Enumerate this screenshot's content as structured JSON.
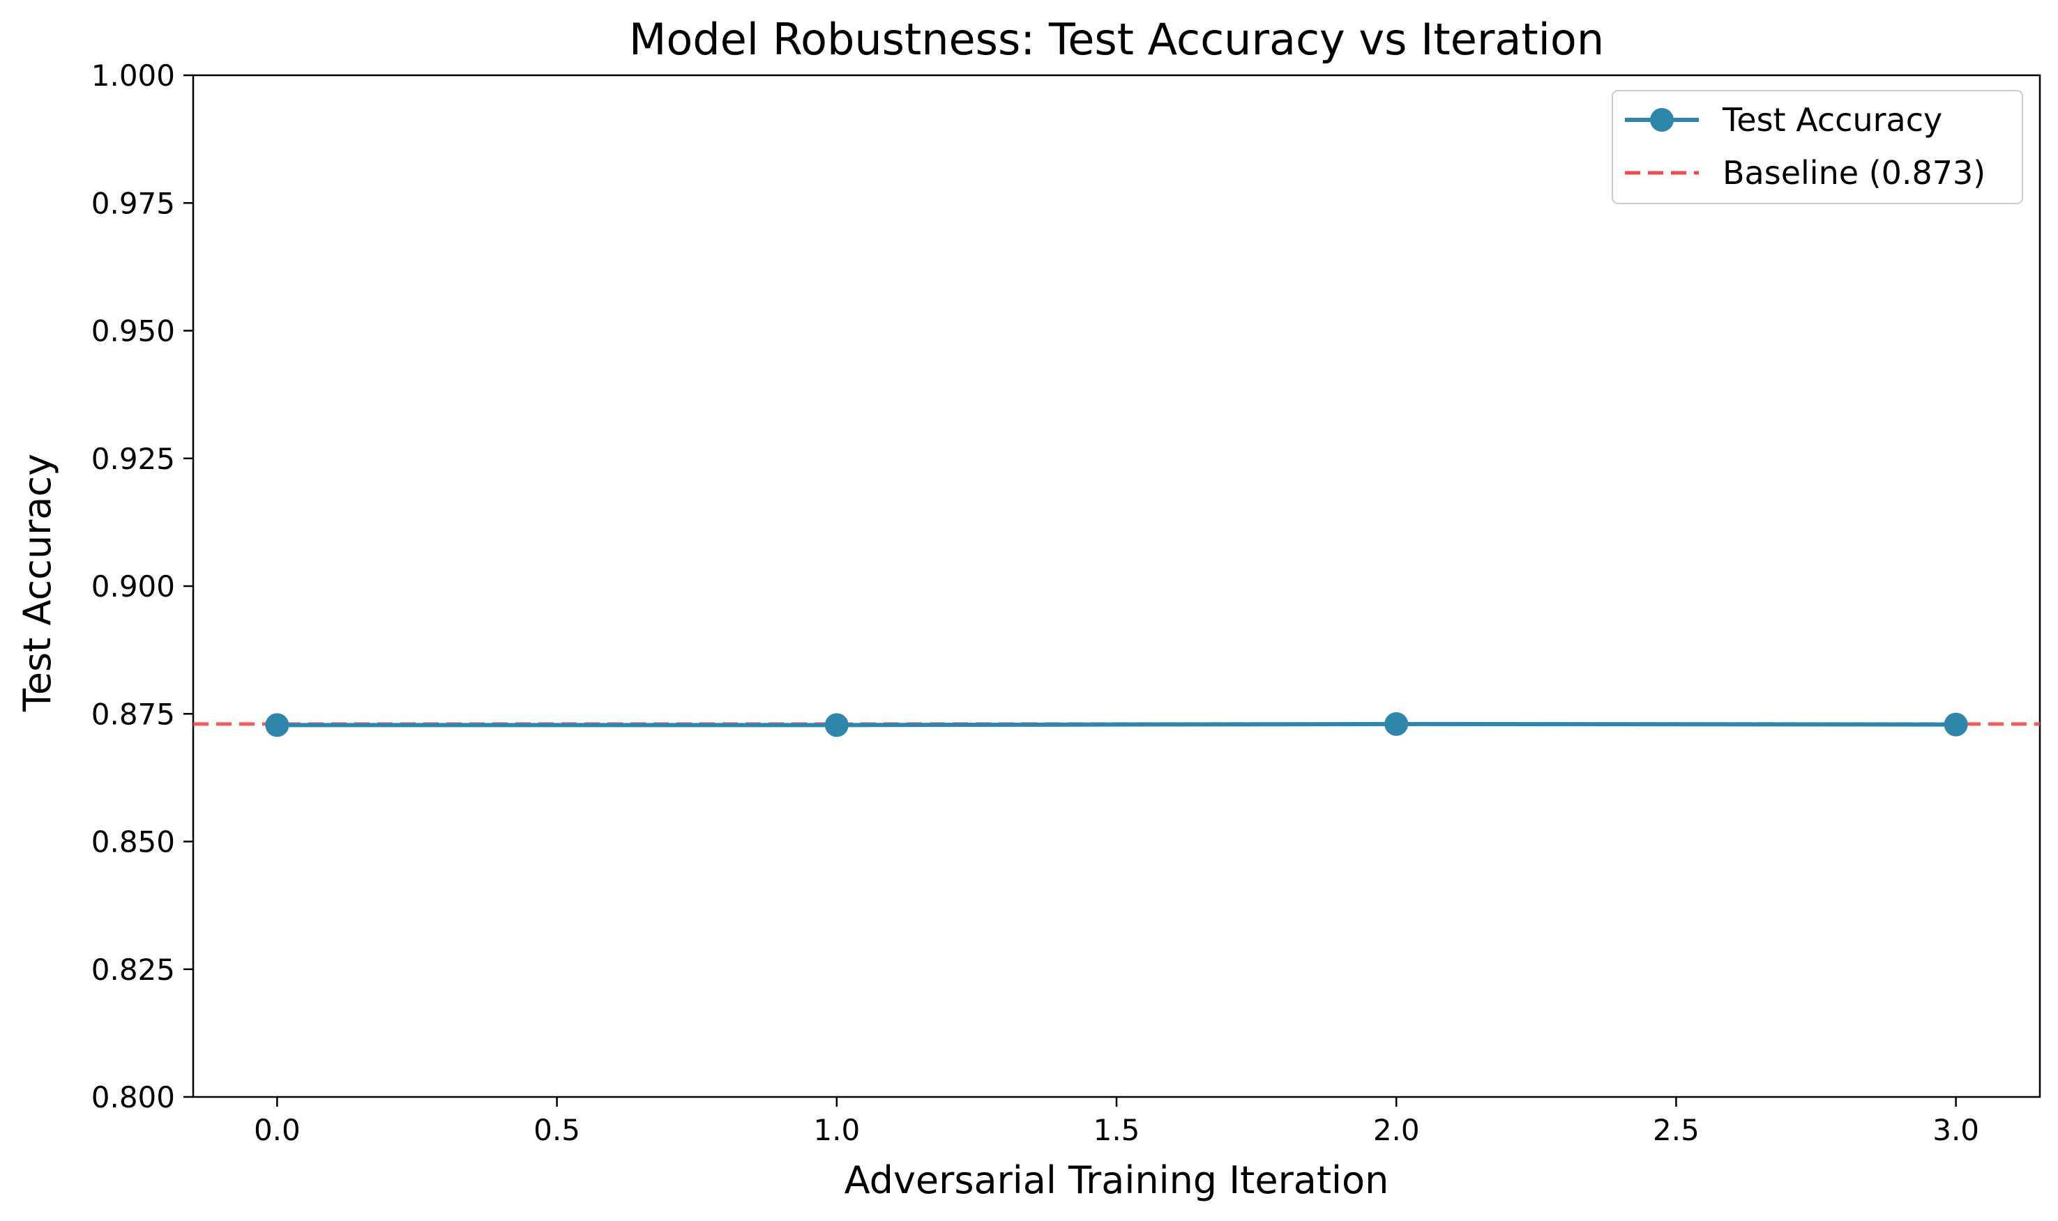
{
  "chart_data": {
    "type": "line",
    "title": "Model Robustness: Test Accuracy vs Iteration",
    "xlabel": "Adversarial Training Iteration",
    "ylabel": "Test Accuracy",
    "xlim": [
      -0.15,
      3.15
    ],
    "ylim": [
      0.8,
      1.0
    ],
    "x_ticks": [
      0.0,
      0.5,
      1.0,
      1.5,
      2.0,
      2.5,
      3.0
    ],
    "x_tick_labels": [
      "0.0",
      "0.5",
      "1.0",
      "1.5",
      "2.0",
      "2.5",
      "3.0"
    ],
    "y_ticks": [
      0.8,
      0.825,
      0.85,
      0.875,
      0.9,
      0.925,
      0.95,
      0.975,
      1.0
    ],
    "y_tick_labels": [
      "0.800",
      "0.825",
      "0.850",
      "0.875",
      "0.900",
      "0.925",
      "0.950",
      "0.975",
      "1.000"
    ],
    "grid": false,
    "legend_position": "top-right",
    "series": [
      {
        "name": "Test Accuracy",
        "x": [
          0,
          1,
          2,
          3
        ],
        "y": [
          0.8728,
          0.8728,
          0.873,
          0.8729
        ],
        "color": "#2e86ab",
        "style": "solid",
        "marker": "circle"
      }
    ],
    "reference_lines": [
      {
        "name": "Baseline (0.873)",
        "y": 0.873,
        "color": "#f24a4a",
        "style": "dashed"
      }
    ]
  }
}
